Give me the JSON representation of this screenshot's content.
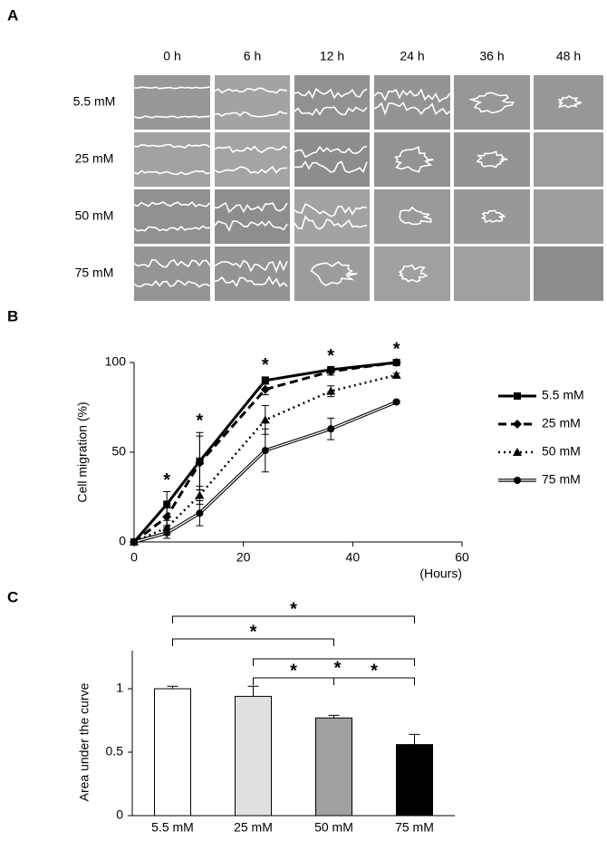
{
  "panel_a": {
    "label": "A",
    "columns": [
      "0 h",
      "6 h",
      "12 h",
      "24 h",
      "36 h",
      "48 h"
    ],
    "rows": [
      "5.5 mM",
      "25 mM",
      "50 mM",
      "75 mM"
    ]
  },
  "chart_data": [
    {
      "type": "line",
      "panel": "B",
      "ylabel": "Cell migration (%)",
      "xlabel": "(Hours)",
      "x": [
        0,
        6,
        12,
        24,
        36,
        48
      ],
      "xlim": [
        0,
        60
      ],
      "xticks": [
        0,
        20,
        40,
        60
      ],
      "ylim": [
        0,
        100
      ],
      "yticks": [
        0,
        50,
        100
      ],
      "series": [
        {
          "name": "5.5 mM",
          "color": "#000000",
          "style": "solid",
          "marker": "square",
          "values": [
            0,
            21,
            45,
            90,
            96,
            100
          ],
          "errors": [
            0,
            7,
            16,
            2,
            1,
            1
          ]
        },
        {
          "name": "25 mM",
          "color": "#000000",
          "style": "dashed",
          "marker": "diamond",
          "values": [
            0,
            14,
            44,
            85,
            95,
            100
          ],
          "errors": [
            0,
            5,
            15,
            3,
            2,
            1
          ]
        },
        {
          "name": "50 mM",
          "color": "#000000",
          "style": "dotted",
          "marker": "triangle",
          "values": [
            0,
            8,
            26,
            68,
            84,
            93
          ],
          "errors": [
            0,
            4,
            5,
            8,
            3,
            1
          ]
        },
        {
          "name": "75 mM",
          "color": "#000000",
          "style": "double",
          "marker": "circle",
          "values": [
            0,
            5,
            16,
            51,
            63,
            78
          ],
          "errors": [
            0,
            3,
            7,
            12,
            6,
            1
          ]
        }
      ],
      "annotations": [
        {
          "x": 6,
          "text": "*"
        },
        {
          "x": 12,
          "text": "*"
        },
        {
          "x": 24,
          "text": "*"
        },
        {
          "x": 36,
          "text": "*"
        },
        {
          "x": 48,
          "text": "*"
        }
      ]
    },
    {
      "type": "bar",
      "panel": "C",
      "ylabel": "Area under the curve",
      "categories": [
        "5.5 mM",
        "25 mM",
        "50 mM",
        "75 mM"
      ],
      "values": [
        1.0,
        0.94,
        0.77,
        0.56
      ],
      "errors": [
        0.02,
        0.08,
        0.02,
        0.08
      ],
      "colors": [
        "#ffffff",
        "#e0e0e0",
        "#a0a0a0",
        "#000000"
      ],
      "ylim": [
        0,
        1.3
      ],
      "yticks": [
        0,
        0.5,
        1
      ],
      "comparisons": [
        {
          "pair": [
            0,
            3
          ],
          "label": "*"
        },
        {
          "pair": [
            0,
            2
          ],
          "label": "*"
        },
        {
          "pair": [
            1,
            3
          ],
          "label": "*"
        },
        {
          "pair": [
            1,
            2
          ],
          "label": "*"
        },
        {
          "pair": [
            2,
            3
          ],
          "label": "*"
        }
      ]
    }
  ]
}
